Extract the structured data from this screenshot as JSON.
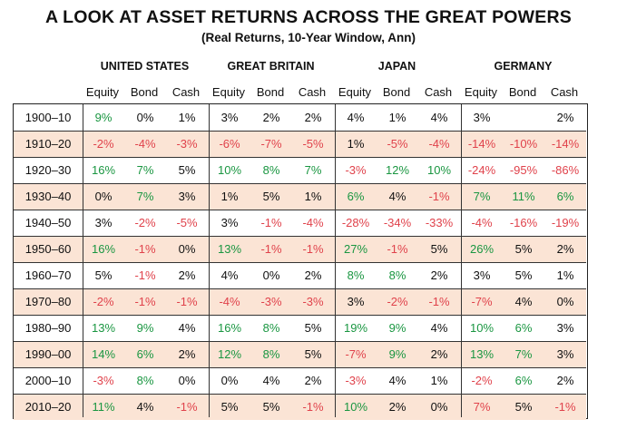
{
  "chart_data": {
    "type": "table",
    "title": "A LOOK AT ASSET RETURNS ACROSS THE GREAT POWERS",
    "subtitle": "(Real Returns, 10-Year Window, Ann)",
    "groups": [
      "UNITED STATES",
      "GREAT BRITAIN",
      "JAPAN",
      "GERMANY"
    ],
    "columns": [
      "Equity",
      "Bond",
      "Cash"
    ],
    "colors": {
      "positive": "#1a9641",
      "negative": "#e0424b",
      "neutral": "#111111",
      "row_shade": "#fbe4d5"
    },
    "rows": [
      {
        "period": "1900–10",
        "values": [
          "9%",
          "0%",
          "1%",
          "3%",
          "2%",
          "2%",
          "4%",
          "1%",
          "4%",
          "3%",
          "",
          "2%"
        ],
        "tone": [
          "p",
          "n",
          "n",
          "n",
          "n",
          "n",
          "n",
          "n",
          "n",
          "n",
          "n",
          "n"
        ]
      },
      {
        "period": "1910–20",
        "values": [
          "-2%",
          "-4%",
          "-3%",
          "-6%",
          "-7%",
          "-5%",
          "1%",
          "-5%",
          "-4%",
          "-14%",
          "-10%",
          "-14%"
        ],
        "tone": [
          "r",
          "r",
          "r",
          "r",
          "r",
          "r",
          "n",
          "r",
          "r",
          "r",
          "r",
          "r"
        ]
      },
      {
        "period": "1920–30",
        "values": [
          "16%",
          "7%",
          "5%",
          "10%",
          "8%",
          "7%",
          "-3%",
          "12%",
          "10%",
          "-24%",
          "-95%",
          "-86%"
        ],
        "tone": [
          "p",
          "p",
          "n",
          "p",
          "p",
          "p",
          "r",
          "p",
          "p",
          "r",
          "r",
          "r"
        ]
      },
      {
        "period": "1930–40",
        "values": [
          "0%",
          "7%",
          "3%",
          "1%",
          "5%",
          "1%",
          "6%",
          "4%",
          "-1%",
          "7%",
          "11%",
          "6%"
        ],
        "tone": [
          "n",
          "p",
          "n",
          "n",
          "n",
          "n",
          "p",
          "n",
          "r",
          "p",
          "p",
          "p"
        ]
      },
      {
        "period": "1940–50",
        "values": [
          "3%",
          "-2%",
          "-5%",
          "3%",
          "-1%",
          "-4%",
          "-28%",
          "-34%",
          "-33%",
          "-4%",
          "-16%",
          "-19%"
        ],
        "tone": [
          "n",
          "r",
          "r",
          "n",
          "r",
          "r",
          "r",
          "r",
          "r",
          "r",
          "r",
          "r"
        ]
      },
      {
        "period": "1950–60",
        "values": [
          "16%",
          "-1%",
          "0%",
          "13%",
          "-1%",
          "-1%",
          "27%",
          "-1%",
          "5%",
          "26%",
          "5%",
          "2%"
        ],
        "tone": [
          "p",
          "r",
          "n",
          "p",
          "r",
          "r",
          "p",
          "r",
          "n",
          "p",
          "n",
          "n"
        ]
      },
      {
        "period": "1960–70",
        "values": [
          "5%",
          "-1%",
          "2%",
          "4%",
          "0%",
          "2%",
          "8%",
          "8%",
          "2%",
          "3%",
          "5%",
          "1%"
        ],
        "tone": [
          "n",
          "r",
          "n",
          "n",
          "n",
          "n",
          "p",
          "p",
          "n",
          "n",
          "n",
          "n"
        ]
      },
      {
        "period": "1970–80",
        "values": [
          "-2%",
          "-1%",
          "-1%",
          "-4%",
          "-3%",
          "-3%",
          "3%",
          "-2%",
          "-1%",
          "-7%",
          "4%",
          "0%"
        ],
        "tone": [
          "r",
          "r",
          "r",
          "r",
          "r",
          "r",
          "n",
          "r",
          "r",
          "r",
          "n",
          "n"
        ]
      },
      {
        "period": "1980–90",
        "values": [
          "13%",
          "9%",
          "4%",
          "16%",
          "8%",
          "5%",
          "19%",
          "9%",
          "4%",
          "10%",
          "6%",
          "3%"
        ],
        "tone": [
          "p",
          "p",
          "n",
          "p",
          "p",
          "n",
          "p",
          "p",
          "n",
          "p",
          "p",
          "n"
        ]
      },
      {
        "period": "1990–00",
        "values": [
          "14%",
          "6%",
          "2%",
          "12%",
          "8%",
          "5%",
          "-7%",
          "9%",
          "2%",
          "13%",
          "7%",
          "3%"
        ],
        "tone": [
          "p",
          "p",
          "n",
          "p",
          "p",
          "n",
          "r",
          "p",
          "n",
          "p",
          "p",
          "n"
        ]
      },
      {
        "period": "2000–10",
        "values": [
          "-3%",
          "8%",
          "0%",
          "0%",
          "4%",
          "2%",
          "-3%",
          "4%",
          "1%",
          "-2%",
          "6%",
          "2%"
        ],
        "tone": [
          "r",
          "p",
          "n",
          "n",
          "n",
          "n",
          "r",
          "n",
          "n",
          "r",
          "p",
          "n"
        ]
      },
      {
        "period": "2010–20",
        "values": [
          "11%",
          "4%",
          "-1%",
          "5%",
          "5%",
          "-1%",
          "10%",
          "2%",
          "0%",
          "7%",
          "5%",
          "-1%"
        ],
        "tone": [
          "p",
          "n",
          "r",
          "n",
          "n",
          "r",
          "p",
          "n",
          "n",
          "r",
          "n",
          "r"
        ]
      }
    ]
  }
}
